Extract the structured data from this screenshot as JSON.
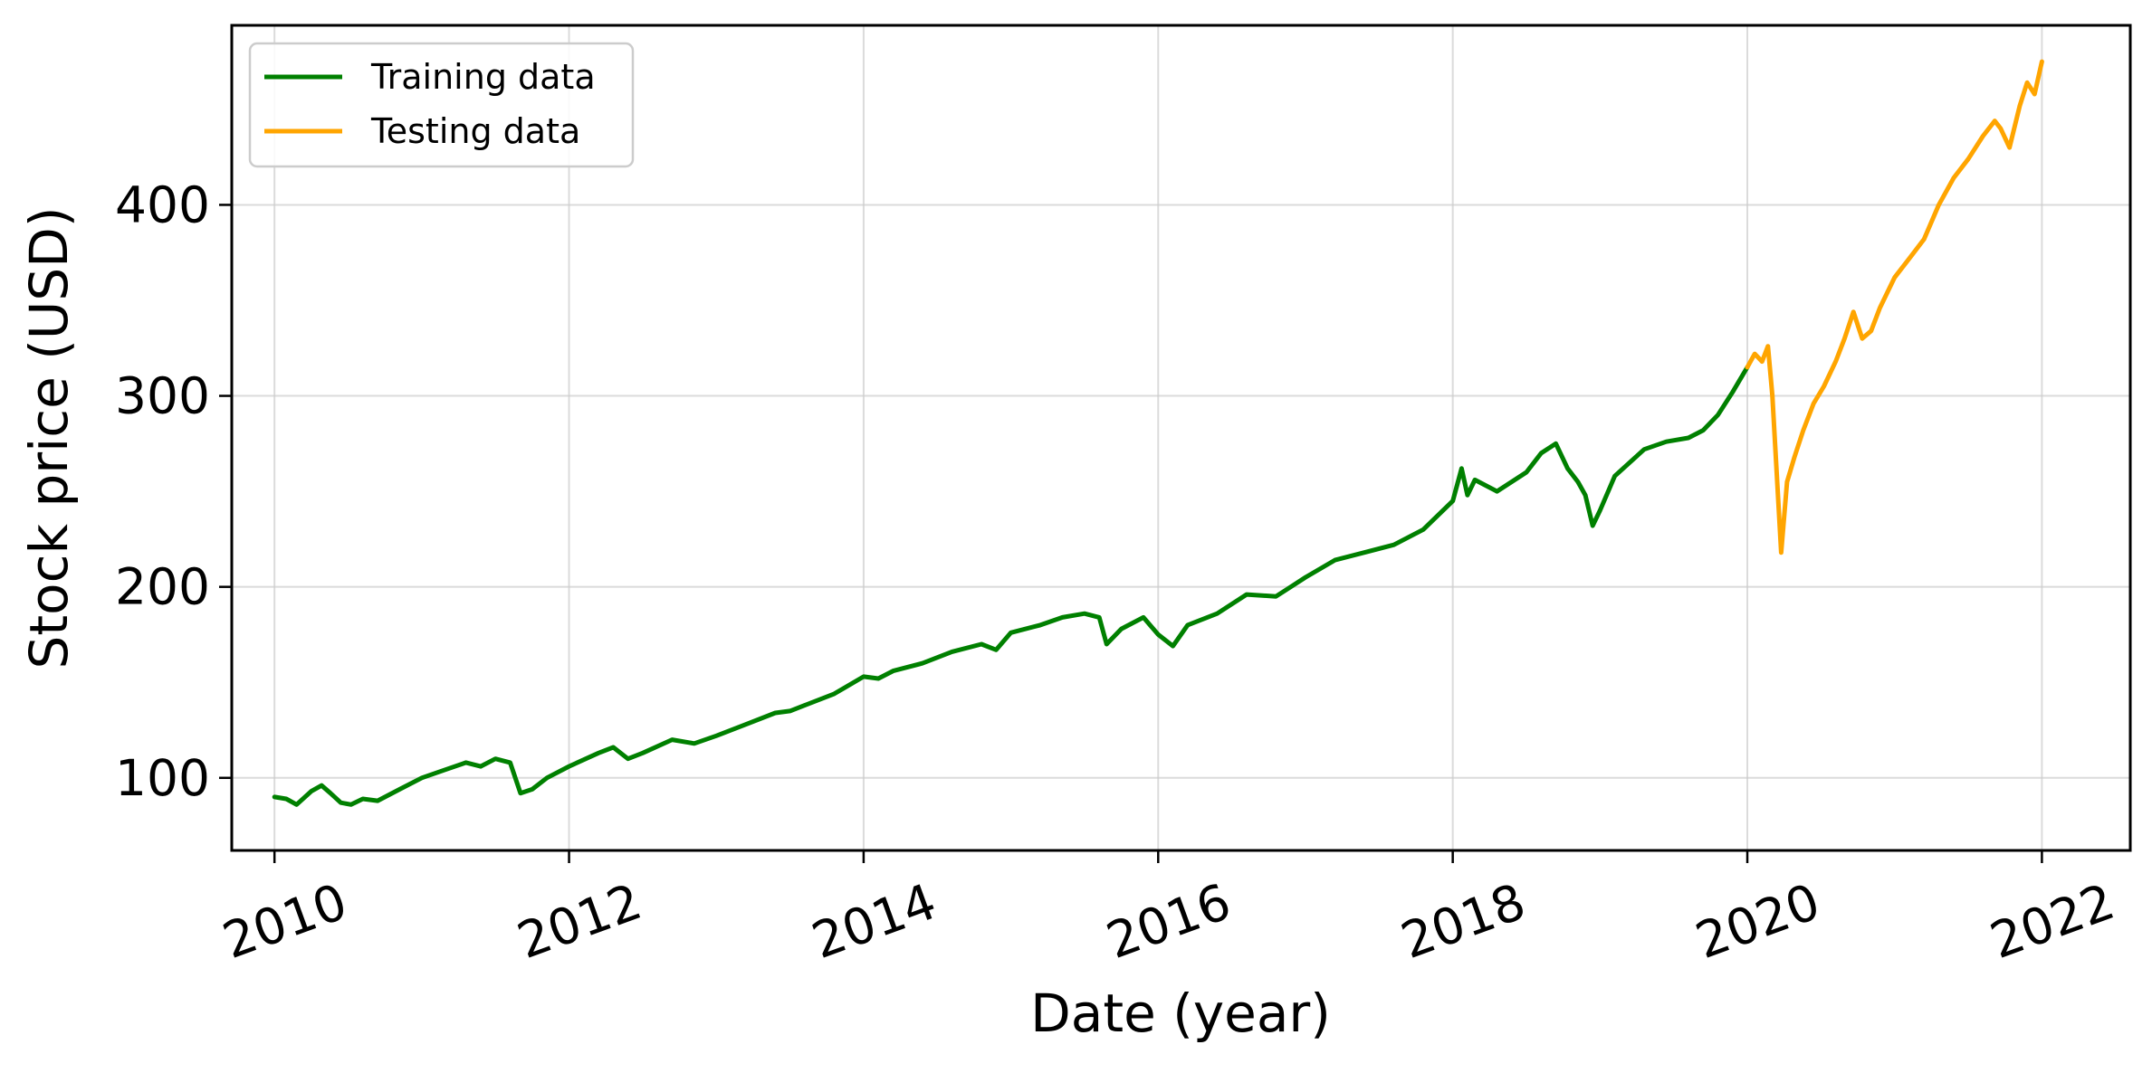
{
  "chart_data": {
    "type": "line",
    "title": "",
    "xlabel": "Date (year)",
    "ylabel": "Stock price (USD)",
    "xlim": [
      2009.71,
      2022.6
    ],
    "ylim": [
      62,
      494
    ],
    "xticks": [
      "2010",
      "2012",
      "2014",
      "2016",
      "2018",
      "2020",
      "2022"
    ],
    "yticks": [
      "100",
      "200",
      "300",
      "400"
    ],
    "grid": true,
    "legend_position": "top-left",
    "series": [
      {
        "name": "Training data",
        "color": "#008000",
        "points": [
          [
            2010.0,
            90
          ],
          [
            2010.08,
            89
          ],
          [
            2010.15,
            86
          ],
          [
            2010.25,
            93
          ],
          [
            2010.32,
            96
          ],
          [
            2010.38,
            92
          ],
          [
            2010.45,
            87
          ],
          [
            2010.52,
            86
          ],
          [
            2010.6,
            89
          ],
          [
            2010.7,
            88
          ],
          [
            2010.85,
            94
          ],
          [
            2011.0,
            100
          ],
          [
            2011.15,
            104
          ],
          [
            2011.3,
            108
          ],
          [
            2011.4,
            106
          ],
          [
            2011.5,
            110
          ],
          [
            2011.6,
            108
          ],
          [
            2011.67,
            92
          ],
          [
            2011.75,
            94
          ],
          [
            2011.85,
            100
          ],
          [
            2012.0,
            106
          ],
          [
            2012.2,
            113
          ],
          [
            2012.3,
            116
          ],
          [
            2012.4,
            110
          ],
          [
            2012.5,
            113
          ],
          [
            2012.7,
            120
          ],
          [
            2012.85,
            118
          ],
          [
            2013.0,
            122
          ],
          [
            2013.2,
            128
          ],
          [
            2013.4,
            134
          ],
          [
            2013.5,
            135
          ],
          [
            2013.6,
            138
          ],
          [
            2013.8,
            144
          ],
          [
            2014.0,
            153
          ],
          [
            2014.1,
            152
          ],
          [
            2014.2,
            156
          ],
          [
            2014.4,
            160
          ],
          [
            2014.6,
            166
          ],
          [
            2014.8,
            170
          ],
          [
            2014.9,
            167
          ],
          [
            2015.0,
            176
          ],
          [
            2015.2,
            180
          ],
          [
            2015.35,
            184
          ],
          [
            2015.5,
            186
          ],
          [
            2015.6,
            184
          ],
          [
            2015.65,
            170
          ],
          [
            2015.75,
            178
          ],
          [
            2015.9,
            184
          ],
          [
            2016.0,
            175
          ],
          [
            2016.1,
            169
          ],
          [
            2016.2,
            180
          ],
          [
            2016.4,
            186
          ],
          [
            2016.6,
            196
          ],
          [
            2016.8,
            195
          ],
          [
            2016.9,
            200
          ],
          [
            2017.0,
            205
          ],
          [
            2017.2,
            214
          ],
          [
            2017.4,
            218
          ],
          [
            2017.6,
            222
          ],
          [
            2017.8,
            230
          ],
          [
            2018.0,
            245
          ],
          [
            2018.06,
            262
          ],
          [
            2018.1,
            248
          ],
          [
            2018.15,
            256
          ],
          [
            2018.3,
            250
          ],
          [
            2018.5,
            260
          ],
          [
            2018.6,
            270
          ],
          [
            2018.7,
            275
          ],
          [
            2018.78,
            262
          ],
          [
            2018.85,
            255
          ],
          [
            2018.9,
            248
          ],
          [
            2018.95,
            232
          ],
          [
            2019.0,
            240
          ],
          [
            2019.1,
            258
          ],
          [
            2019.3,
            272
          ],
          [
            2019.45,
            276
          ],
          [
            2019.6,
            278
          ],
          [
            2019.7,
            282
          ],
          [
            2019.8,
            290
          ],
          [
            2019.9,
            302
          ],
          [
            2020.0,
            315
          ]
        ]
      },
      {
        "name": "Testing data",
        "color": "#ffa500",
        "points": [
          [
            2020.0,
            315
          ],
          [
            2020.05,
            322
          ],
          [
            2020.1,
            318
          ],
          [
            2020.14,
            326
          ],
          [
            2020.17,
            300
          ],
          [
            2020.21,
            245
          ],
          [
            2020.23,
            218
          ],
          [
            2020.27,
            255
          ],
          [
            2020.32,
            268
          ],
          [
            2020.38,
            282
          ],
          [
            2020.45,
            296
          ],
          [
            2020.52,
            305
          ],
          [
            2020.6,
            318
          ],
          [
            2020.66,
            330
          ],
          [
            2020.72,
            344
          ],
          [
            2020.78,
            330
          ],
          [
            2020.84,
            334
          ],
          [
            2020.9,
            346
          ],
          [
            2021.0,
            362
          ],
          [
            2021.1,
            372
          ],
          [
            2021.2,
            382
          ],
          [
            2021.3,
            400
          ],
          [
            2021.4,
            414
          ],
          [
            2021.5,
            424
          ],
          [
            2021.6,
            436
          ],
          [
            2021.68,
            444
          ],
          [
            2021.72,
            440
          ],
          [
            2021.78,
            430
          ],
          [
            2021.85,
            452
          ],
          [
            2021.9,
            464
          ],
          [
            2021.95,
            458
          ],
          [
            2022.0,
            475
          ]
        ]
      }
    ]
  }
}
